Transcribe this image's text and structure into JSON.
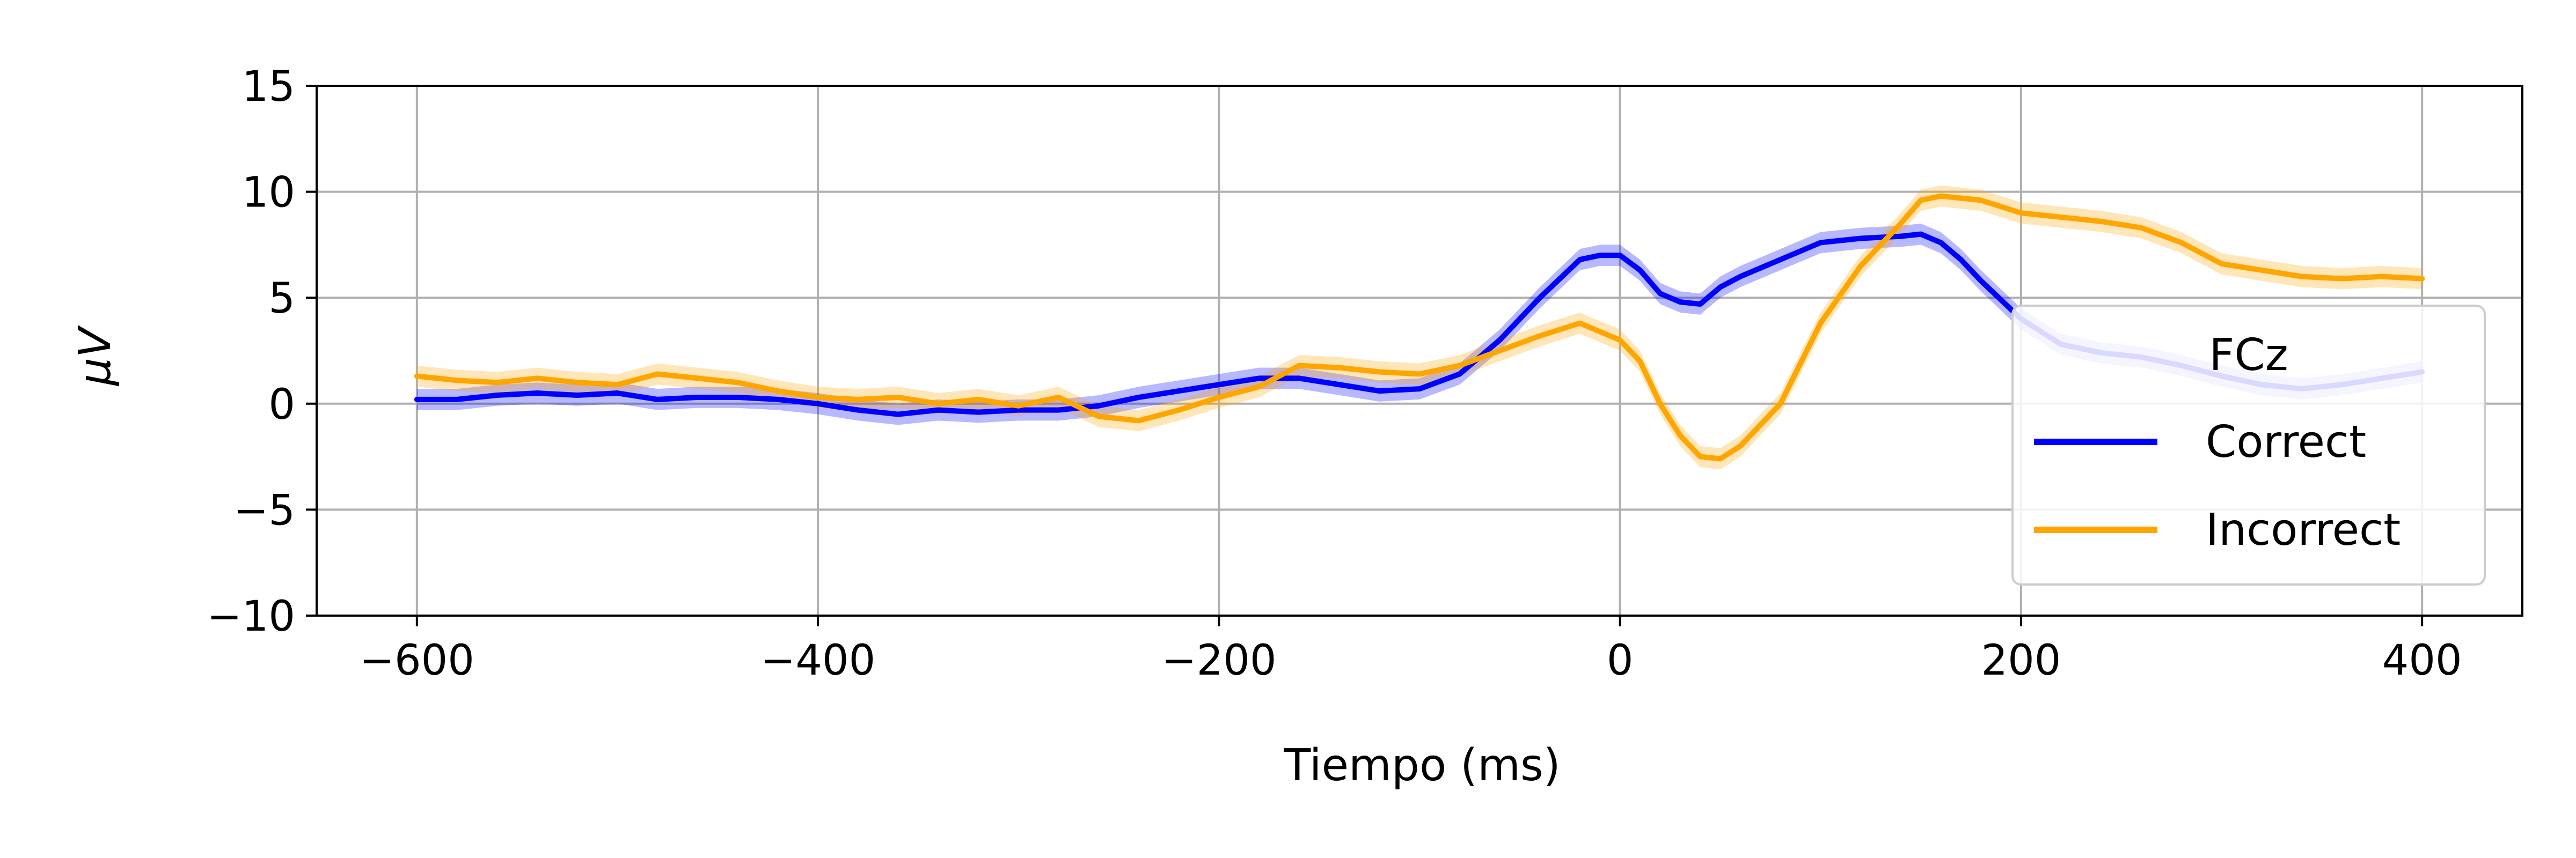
{
  "chart_data": {
    "type": "line",
    "xlabel": "Tiempo (ms)",
    "ylabel": "μV",
    "xlim": [
      -650,
      450
    ],
    "ylim": [
      -10,
      15
    ],
    "xticks": [
      -600,
      -400,
      -200,
      0,
      200,
      400
    ],
    "xtick_labels": [
      "−600",
      "−400",
      "−200",
      "0",
      "200",
      "400"
    ],
    "yticks": [
      -10,
      -5,
      0,
      5,
      10,
      15
    ],
    "ytick_labels": [
      "−10",
      "−5",
      "0",
      "5",
      "10",
      "15"
    ],
    "grid": true,
    "legend": {
      "title": "FCz",
      "placement": "lower-right"
    },
    "series": [
      {
        "name": "Correct",
        "color": "#0000ff",
        "band": 0.5,
        "x": [
          -600,
          -580,
          -560,
          -540,
          -520,
          -500,
          -480,
          -460,
          -440,
          -420,
          -400,
          -380,
          -360,
          -340,
          -320,
          -300,
          -280,
          -260,
          -240,
          -220,
          -200,
          -180,
          -160,
          -140,
          -120,
          -100,
          -80,
          -60,
          -40,
          -20,
          -10,
          0,
          10,
          20,
          30,
          40,
          50,
          60,
          80,
          100,
          120,
          140,
          150,
          160,
          170,
          180,
          200,
          220,
          240,
          260,
          280,
          300,
          320,
          340,
          360,
          380,
          400
        ],
        "y": [
          0.2,
          0.2,
          0.4,
          0.5,
          0.4,
          0.5,
          0.2,
          0.3,
          0.3,
          0.2,
          0.0,
          -0.3,
          -0.5,
          -0.3,
          -0.4,
          -0.3,
          -0.3,
          -0.1,
          0.3,
          0.6,
          0.9,
          1.2,
          1.2,
          0.9,
          0.6,
          0.7,
          1.4,
          3.0,
          5.0,
          6.8,
          7.0,
          7.0,
          6.3,
          5.2,
          4.8,
          4.7,
          5.5,
          6.0,
          6.8,
          7.6,
          7.8,
          7.9,
          8.0,
          7.6,
          6.8,
          5.8,
          4.0,
          2.8,
          2.4,
          2.2,
          1.8,
          1.3,
          0.9,
          0.7,
          0.9,
          1.2,
          1.5
        ]
      },
      {
        "name": "Incorrect",
        "color": "#ffa500",
        "band": 0.5,
        "x": [
          -600,
          -580,
          -560,
          -540,
          -520,
          -500,
          -480,
          -460,
          -440,
          -420,
          -400,
          -380,
          -360,
          -340,
          -320,
          -300,
          -280,
          -260,
          -240,
          -220,
          -200,
          -180,
          -160,
          -140,
          -120,
          -100,
          -80,
          -60,
          -40,
          -20,
          0,
          10,
          20,
          30,
          40,
          50,
          60,
          70,
          80,
          100,
          120,
          140,
          150,
          160,
          180,
          200,
          220,
          240,
          260,
          280,
          300,
          320,
          340,
          360,
          380,
          400
        ],
        "y": [
          1.3,
          1.1,
          1.0,
          1.2,
          1.0,
          0.9,
          1.4,
          1.2,
          1.0,
          0.6,
          0.3,
          0.2,
          0.3,
          0.0,
          0.2,
          -0.1,
          0.3,
          -0.6,
          -0.8,
          -0.3,
          0.3,
          0.8,
          1.8,
          1.7,
          1.5,
          1.4,
          1.8,
          2.5,
          3.2,
          3.8,
          3.0,
          2.0,
          0.0,
          -1.5,
          -2.5,
          -2.6,
          -2.0,
          -1.0,
          0.0,
          3.8,
          6.5,
          8.5,
          9.6,
          9.8,
          9.6,
          9.0,
          8.8,
          8.6,
          8.3,
          7.6,
          6.6,
          6.3,
          6.0,
          5.9,
          6.0,
          5.9
        ]
      }
    ]
  }
}
